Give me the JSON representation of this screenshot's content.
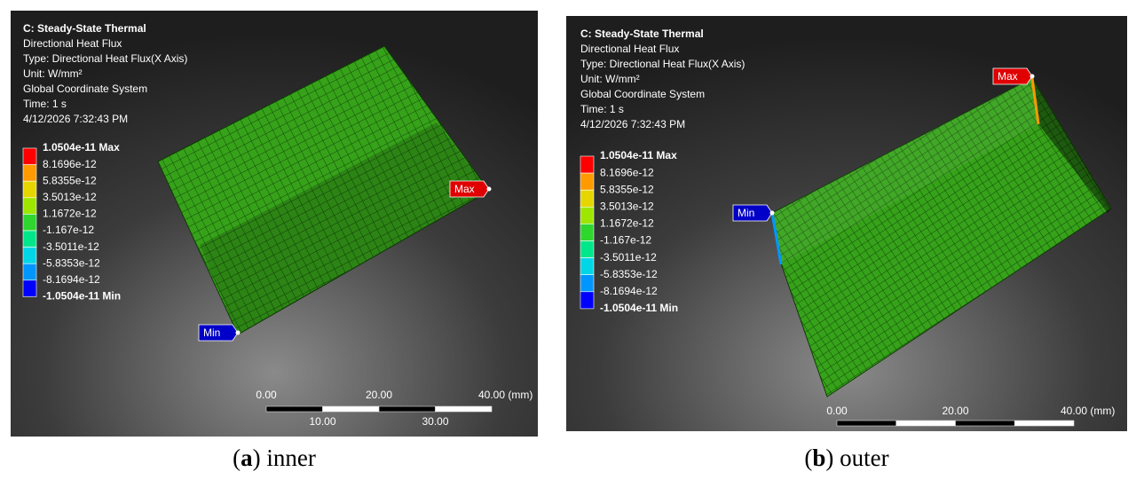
{
  "panels": [
    {
      "header": {
        "title": "C: Steady-State Thermal",
        "lines": [
          "Directional Heat Flux",
          "Type: Directional Heat Flux(X Axis)",
          "Unit: W/mm²",
          "Global Coordinate System",
          "Time: 1 s",
          "4/12/2026 7:32:43 PM"
        ]
      },
      "legend": [
        "1.0504e-11 Max",
        "8.1696e-12",
        "5.8355e-12",
        "3.5013e-12",
        "1.1672e-12",
        "-1.167e-12",
        "-3.5011e-12",
        "-5.8353e-12",
        "-8.1694e-12",
        "-1.0504e-11 Min"
      ],
      "probes": {
        "max": "Max",
        "min": "Min"
      },
      "scale": {
        "top": [
          "0.00",
          "20.00",
          "40.00 (mm)"
        ],
        "bottom": [
          "10.00",
          "30.00"
        ]
      },
      "caption": [
        "(",
        "a",
        ") inner"
      ]
    },
    {
      "header": {
        "title": "C: Steady-State Thermal",
        "lines": [
          "Directional Heat Flux",
          "Type: Directional Heat Flux(X Axis)",
          "Unit: W/mm²",
          "Global Coordinate System",
          "Time: 1 s",
          "4/12/2026 7:32:43 PM"
        ]
      },
      "legend": [
        "1.0504e-11 Max",
        "8.1696e-12",
        "5.8355e-12",
        "3.5013e-12",
        "1.1672e-12",
        "-1.167e-12",
        "-3.5011e-12",
        "-5.8353e-12",
        "-8.1694e-12",
        "-1.0504e-11 Min"
      ],
      "probes": {
        "max": "Max",
        "min": "Min"
      },
      "scale": {
        "top": [
          "0.00",
          "20.00",
          "40.00 (mm)"
        ]
      },
      "caption": [
        "(",
        "b",
        ") outer"
      ]
    }
  ]
}
